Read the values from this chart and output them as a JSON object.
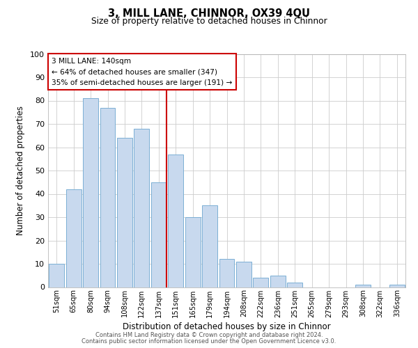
{
  "title": "3, MILL LANE, CHINNOR, OX39 4QU",
  "subtitle": "Size of property relative to detached houses in Chinnor",
  "xlabel": "Distribution of detached houses by size in Chinnor",
  "ylabel": "Number of detached properties",
  "bar_labels": [
    "51sqm",
    "65sqm",
    "80sqm",
    "94sqm",
    "108sqm",
    "122sqm",
    "137sqm",
    "151sqm",
    "165sqm",
    "179sqm",
    "194sqm",
    "208sqm",
    "222sqm",
    "236sqm",
    "251sqm",
    "265sqm",
    "279sqm",
    "293sqm",
    "308sqm",
    "322sqm",
    "336sqm"
  ],
  "bar_values": [
    10,
    42,
    81,
    77,
    64,
    68,
    45,
    57,
    30,
    35,
    12,
    11,
    4,
    5,
    2,
    0,
    0,
    0,
    1,
    0,
    1
  ],
  "bar_color": "#c8d9ee",
  "bar_edge_color": "#7bafd4",
  "vline_x_index": 6,
  "vline_color": "#cc0000",
  "annotation_title": "3 MILL LANE: 140sqm",
  "annotation_line1": "← 64% of detached houses are smaller (347)",
  "annotation_line2": "35% of semi-detached houses are larger (191) →",
  "annotation_box_color": "#ffffff",
  "annotation_box_edge": "#cc0000",
  "ylim": [
    0,
    100
  ],
  "footer1": "Contains HM Land Registry data © Crown copyright and database right 2024.",
  "footer2": "Contains public sector information licensed under the Open Government Licence v3.0.",
  "background_color": "#ffffff",
  "grid_color": "#cccccc"
}
